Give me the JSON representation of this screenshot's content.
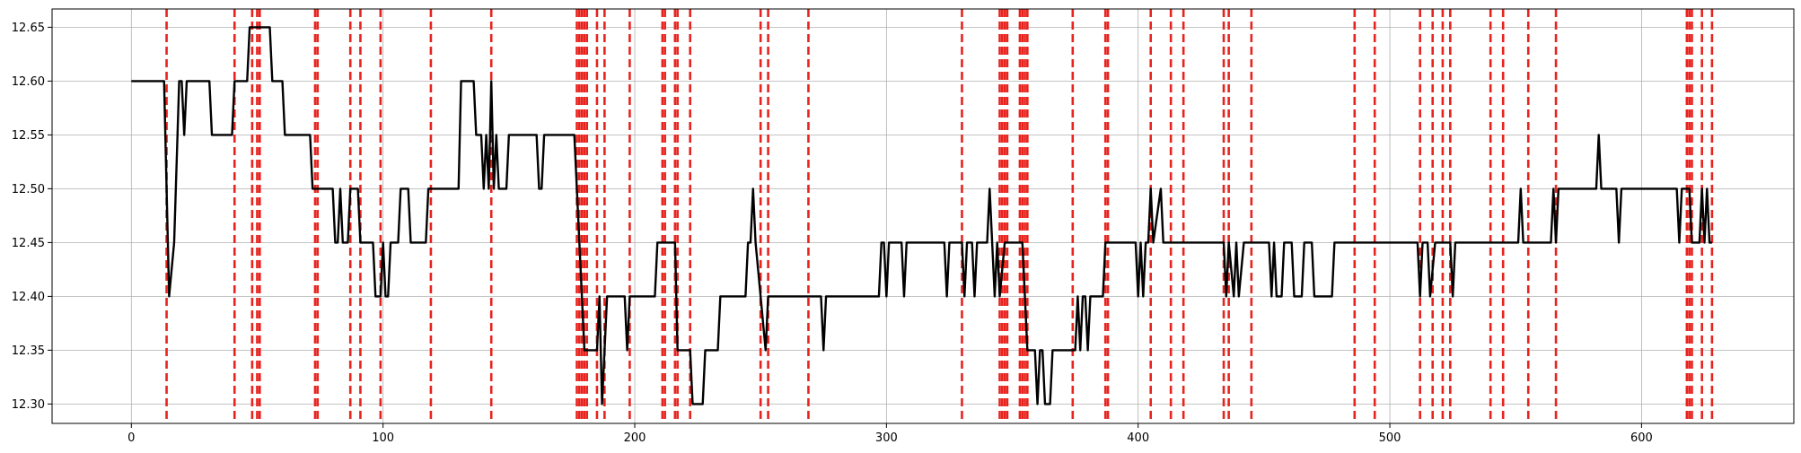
{
  "chart_data": {
    "type": "line",
    "title": "",
    "xlabel": "",
    "ylabel": "",
    "xlim": [
      -31.5,
      660.5
    ],
    "ylim": [
      12.282,
      12.667
    ],
    "x_ticks": [
      0,
      100,
      200,
      300,
      400,
      500,
      600
    ],
    "x_tick_labels": [
      "0",
      "100",
      "200",
      "300",
      "400",
      "500",
      "600"
    ],
    "y_ticks": [
      12.3,
      12.35,
      12.4,
      12.45,
      12.5,
      12.55,
      12.6,
      12.65
    ],
    "y_tick_labels": [
      "12.30",
      "12.35",
      "12.40",
      "12.45",
      "12.50",
      "12.55",
      "12.60",
      "12.65"
    ],
    "grid": true,
    "legend": "none",
    "line_color": "#000000",
    "vline_color": "#e8231e",
    "series": [
      {
        "points": [
          [
            0,
            12.6
          ],
          [
            13,
            12.6
          ],
          [
            15,
            12.4
          ],
          [
            17,
            12.45
          ],
          [
            19,
            12.6
          ],
          [
            20,
            12.6
          ],
          [
            21,
            12.55
          ],
          [
            22,
            12.6
          ],
          [
            31,
            12.6
          ],
          [
            32,
            12.55
          ],
          [
            40,
            12.55
          ],
          [
            41,
            12.6
          ],
          [
            46,
            12.6
          ],
          [
            47,
            12.65
          ],
          [
            55,
            12.65
          ],
          [
            56,
            12.6
          ],
          [
            60,
            12.6
          ],
          [
            61,
            12.55
          ],
          [
            71,
            12.55
          ],
          [
            72,
            12.5
          ],
          [
            80,
            12.5
          ],
          [
            81,
            12.45
          ],
          [
            82,
            12.45
          ],
          [
            83,
            12.5
          ],
          [
            84,
            12.45
          ],
          [
            86,
            12.45
          ],
          [
            87,
            12.5
          ],
          [
            90,
            12.5
          ],
          [
            91,
            12.45
          ],
          [
            96,
            12.45
          ],
          [
            97,
            12.4
          ],
          [
            99,
            12.4
          ],
          [
            100,
            12.45
          ],
          [
            101,
            12.4
          ],
          [
            102,
            12.4
          ],
          [
            103,
            12.45
          ],
          [
            106,
            12.45
          ],
          [
            107,
            12.5
          ],
          [
            110,
            12.5
          ],
          [
            111,
            12.45
          ],
          [
            117,
            12.45
          ],
          [
            118,
            12.5
          ],
          [
            130,
            12.5
          ],
          [
            131,
            12.6
          ],
          [
            136,
            12.6
          ],
          [
            137,
            12.55
          ],
          [
            139,
            12.55
          ],
          [
            140,
            12.5
          ],
          [
            141,
            12.55
          ],
          [
            142,
            12.5
          ],
          [
            143,
            12.6
          ],
          [
            144,
            12.5
          ],
          [
            145,
            12.55
          ],
          [
            146,
            12.5
          ],
          [
            149,
            12.5
          ],
          [
            150,
            12.55
          ],
          [
            161,
            12.55
          ],
          [
            162,
            12.5
          ],
          [
            163,
            12.5
          ],
          [
            164,
            12.55
          ],
          [
            176,
            12.55
          ],
          [
            177,
            12.5
          ],
          [
            179,
            12.4
          ],
          [
            180,
            12.35
          ],
          [
            185,
            12.35
          ],
          [
            186,
            12.4
          ],
          [
            187,
            12.3
          ],
          [
            188,
            12.35
          ],
          [
            189,
            12.4
          ],
          [
            196,
            12.4
          ],
          [
            197,
            12.35
          ],
          [
            198,
            12.4
          ],
          [
            208,
            12.4
          ],
          [
            209,
            12.45
          ],
          [
            216,
            12.45
          ],
          [
            217,
            12.35
          ],
          [
            222,
            12.35
          ],
          [
            223,
            12.3
          ],
          [
            227,
            12.3
          ],
          [
            228,
            12.35
          ],
          [
            233,
            12.35
          ],
          [
            234,
            12.4
          ],
          [
            244,
            12.4
          ],
          [
            245,
            12.45
          ],
          [
            246,
            12.45
          ],
          [
            247,
            12.5
          ],
          [
            248,
            12.45
          ],
          [
            252,
            12.35
          ],
          [
            253,
            12.4
          ],
          [
            274,
            12.4
          ],
          [
            275,
            12.35
          ],
          [
            276,
            12.4
          ],
          [
            297,
            12.4
          ],
          [
            298,
            12.45
          ],
          [
            299,
            12.45
          ],
          [
            300,
            12.4
          ],
          [
            301,
            12.45
          ],
          [
            306,
            12.45
          ],
          [
            307,
            12.4
          ],
          [
            308,
            12.45
          ],
          [
            323,
            12.45
          ],
          [
            324,
            12.4
          ],
          [
            325,
            12.45
          ],
          [
            330,
            12.45
          ],
          [
            331,
            12.4
          ],
          [
            332,
            12.45
          ],
          [
            334,
            12.45
          ],
          [
            335,
            12.4
          ],
          [
            336,
            12.45
          ],
          [
            340,
            12.45
          ],
          [
            341,
            12.5
          ],
          [
            342,
            12.45
          ],
          [
            343,
            12.4
          ],
          [
            344,
            12.45
          ],
          [
            345,
            12.4
          ],
          [
            347,
            12.45
          ],
          [
            354,
            12.45
          ],
          [
            355,
            12.4
          ],
          [
            356,
            12.35
          ],
          [
            359,
            12.35
          ],
          [
            360,
            12.3
          ],
          [
            361,
            12.35
          ],
          [
            362,
            12.35
          ],
          [
            363,
            12.3
          ],
          [
            365,
            12.3
          ],
          [
            366,
            12.35
          ],
          [
            375,
            12.35
          ],
          [
            376,
            12.4
          ],
          [
            377,
            12.35
          ],
          [
            378,
            12.4
          ],
          [
            379,
            12.4
          ],
          [
            380,
            12.35
          ],
          [
            381,
            12.4
          ],
          [
            386,
            12.4
          ],
          [
            387,
            12.45
          ],
          [
            399,
            12.45
          ],
          [
            400,
            12.4
          ],
          [
            401,
            12.45
          ],
          [
            402,
            12.4
          ],
          [
            403,
            12.45
          ],
          [
            404,
            12.45
          ],
          [
            405,
            12.5
          ],
          [
            406,
            12.45
          ],
          [
            409,
            12.5
          ],
          [
            410,
            12.45
          ],
          [
            434,
            12.45
          ],
          [
            435,
            12.4
          ],
          [
            436,
            12.45
          ],
          [
            438,
            12.4
          ],
          [
            439,
            12.45
          ],
          [
            440,
            12.4
          ],
          [
            442,
            12.45
          ],
          [
            452,
            12.45
          ],
          [
            453,
            12.4
          ],
          [
            454,
            12.45
          ],
          [
            455,
            12.4
          ],
          [
            457,
            12.4
          ],
          [
            458,
            12.45
          ],
          [
            461,
            12.45
          ],
          [
            462,
            12.4
          ],
          [
            465,
            12.4
          ],
          [
            466,
            12.45
          ],
          [
            469,
            12.45
          ],
          [
            470,
            12.4
          ],
          [
            477,
            12.4
          ],
          [
            478,
            12.45
          ],
          [
            511,
            12.45
          ],
          [
            512,
            12.4
          ],
          [
            513,
            12.45
          ],
          [
            515,
            12.45
          ],
          [
            516,
            12.4
          ],
          [
            518,
            12.45
          ],
          [
            524,
            12.45
          ],
          [
            525,
            12.4
          ],
          [
            526,
            12.45
          ],
          [
            551,
            12.45
          ],
          [
            552,
            12.5
          ],
          [
            553,
            12.45
          ],
          [
            564,
            12.45
          ],
          [
            565,
            12.5
          ],
          [
            566,
            12.45
          ],
          [
            567,
            12.5
          ],
          [
            582,
            12.5
          ],
          [
            583,
            12.55
          ],
          [
            584,
            12.5
          ],
          [
            590,
            12.5
          ],
          [
            591,
            12.45
          ],
          [
            592,
            12.5
          ],
          [
            614,
            12.5
          ],
          [
            615,
            12.45
          ],
          [
            616,
            12.5
          ],
          [
            619,
            12.5
          ],
          [
            620,
            12.45
          ],
          [
            623,
            12.45
          ],
          [
            624,
            12.5
          ],
          [
            625,
            12.45
          ],
          [
            626,
            12.5
          ],
          [
            627,
            12.45
          ],
          [
            628,
            12.45
          ]
        ]
      }
    ],
    "vlines": [
      14,
      41,
      48,
      50,
      51,
      73,
      74,
      87,
      91,
      99,
      119,
      143,
      177,
      178,
      179,
      180,
      181,
      185,
      188,
      198,
      211,
      212,
      216,
      217,
      222,
      250,
      253,
      269,
      330,
      345,
      346,
      347,
      348,
      353,
      354,
      355,
      356,
      374,
      387,
      388,
      405,
      413,
      418,
      434,
      436,
      445,
      486,
      494,
      512,
      517,
      521,
      524,
      540,
      545,
      555,
      566,
      618,
      619,
      620,
      624,
      628
    ]
  }
}
